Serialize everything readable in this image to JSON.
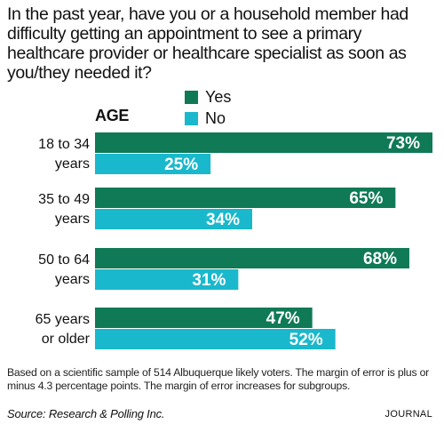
{
  "question": "In the past year, have you or a household member had difficulty getting an appointment to see a primary healthcare provider or healthcare specialist as soon as you/they needed it?",
  "legend": [
    {
      "label": "Yes",
      "color": "#0f7a55"
    },
    {
      "label": "No",
      "color": "#1ab8cc"
    }
  ],
  "age_heading": "AGE",
  "chart_data": {
    "type": "bar",
    "orientation": "horizontal",
    "categories": [
      "18 to 34 years",
      "35 to 49 years",
      "50 to 64 years",
      "65 years or older"
    ],
    "category_lines": [
      [
        "18 to 34",
        "years"
      ],
      [
        "35 to 49",
        "years"
      ],
      [
        "50 to 64",
        "years"
      ],
      [
        "65 years",
        "or older"
      ]
    ],
    "series": [
      {
        "name": "Yes",
        "color": "#0f7a55",
        "values": [
          73,
          65,
          68,
          47
        ],
        "labels": [
          "73%",
          "65%",
          "68%",
          "47%"
        ]
      },
      {
        "name": "No",
        "color": "#1ab8cc",
        "values": [
          25,
          34,
          31,
          52
        ],
        "labels": [
          "25%",
          "34%",
          "31%",
          "52%"
        ]
      }
    ],
    "xlim": [
      0,
      73
    ],
    "grid": false
  },
  "footnote": "Based on a scientific sample of 514 Albuquerque likely voters. The margin of error is plus or minus 4.3 percentage points. The margin of error increases for subgroups.",
  "source": "Source: Research & Polling Inc.",
  "brand": "JOURNAL"
}
